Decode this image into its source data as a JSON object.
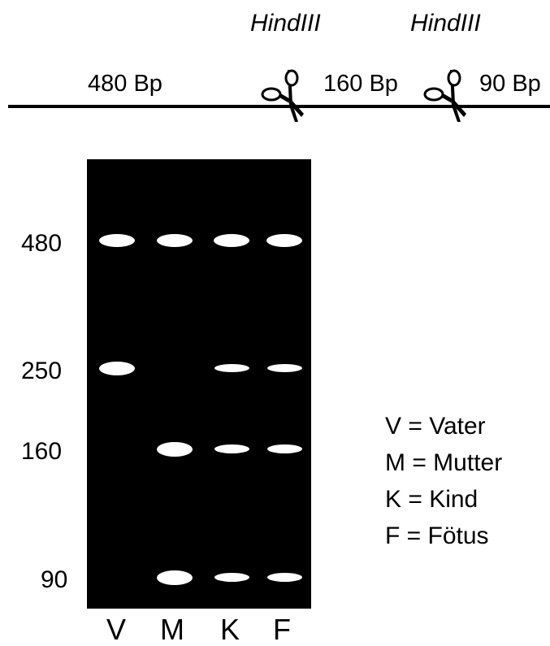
{
  "enzymes": [
    "HindIII",
    "HindIII"
  ],
  "fragments": [
    "480 Bp",
    "160 Bp",
    "90 Bp"
  ],
  "icons": [
    "scissors-icon",
    "scissors-icon"
  ],
  "size_markers": [
    "480",
    "250",
    "160",
    "90"
  ],
  "lanes": [
    "V",
    "M",
    "K",
    "F"
  ],
  "legend": [
    "V = Vater",
    "M = Mutter",
    "K = Kind",
    "F = Fötus"
  ],
  "bands_present": {
    "V": [
      "480",
      "250"
    ],
    "M": [
      "480",
      "160",
      "90"
    ],
    "K": [
      "480",
      "250",
      "160",
      "90"
    ],
    "F": [
      "480",
      "250",
      "160",
      "90"
    ]
  },
  "colors": {
    "gel": "#000000",
    "band": "#ffffff",
    "text": "#000000"
  }
}
